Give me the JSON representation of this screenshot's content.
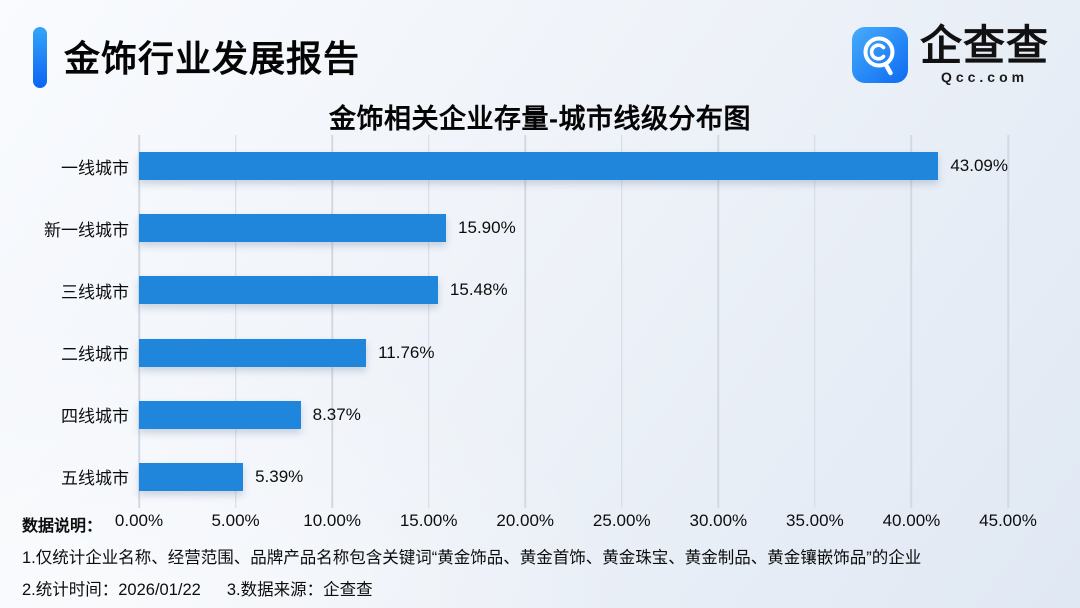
{
  "header": {
    "title": "金饰行业发展报告"
  },
  "logo": {
    "name": "企查查",
    "domain": "Qcc.com",
    "brand_blue": "#1c7ef5"
  },
  "chart_data": {
    "type": "bar",
    "orientation": "horizontal",
    "title": "金饰相关企业存量-城市线级分布图",
    "categories": [
      "一线城市",
      "新一线城市",
      "三线城市",
      "二线城市",
      "四线城市",
      "五线城市"
    ],
    "values": [
      43.09,
      15.9,
      15.48,
      11.76,
      8.37,
      5.39
    ],
    "value_labels": [
      "43.09%",
      "15.90%",
      "15.48%",
      "11.76%",
      "8.37%",
      "5.39%"
    ],
    "x_ticks": [
      "0.00%",
      "5.00%",
      "10.00%",
      "15.00%",
      "20.00%",
      "25.00%",
      "30.00%",
      "35.00%",
      "40.00%",
      "45.00%"
    ],
    "xlim": [
      0,
      45
    ],
    "bar_color": "#2086dc",
    "grid": "vertical-only",
    "legend": "none"
  },
  "footer": {
    "data_note_label": "数据说明：",
    "note1": "1.仅统计企业名称、经营范围、品牌产品名称包含关键词“黄金饰品、黄金首饰、黄金珠宝、黄金制品、黄金镶嵌饰品”的企业",
    "note2": "2.统计时间：2026/01/22",
    "note3": "3.数据来源：企查查"
  }
}
